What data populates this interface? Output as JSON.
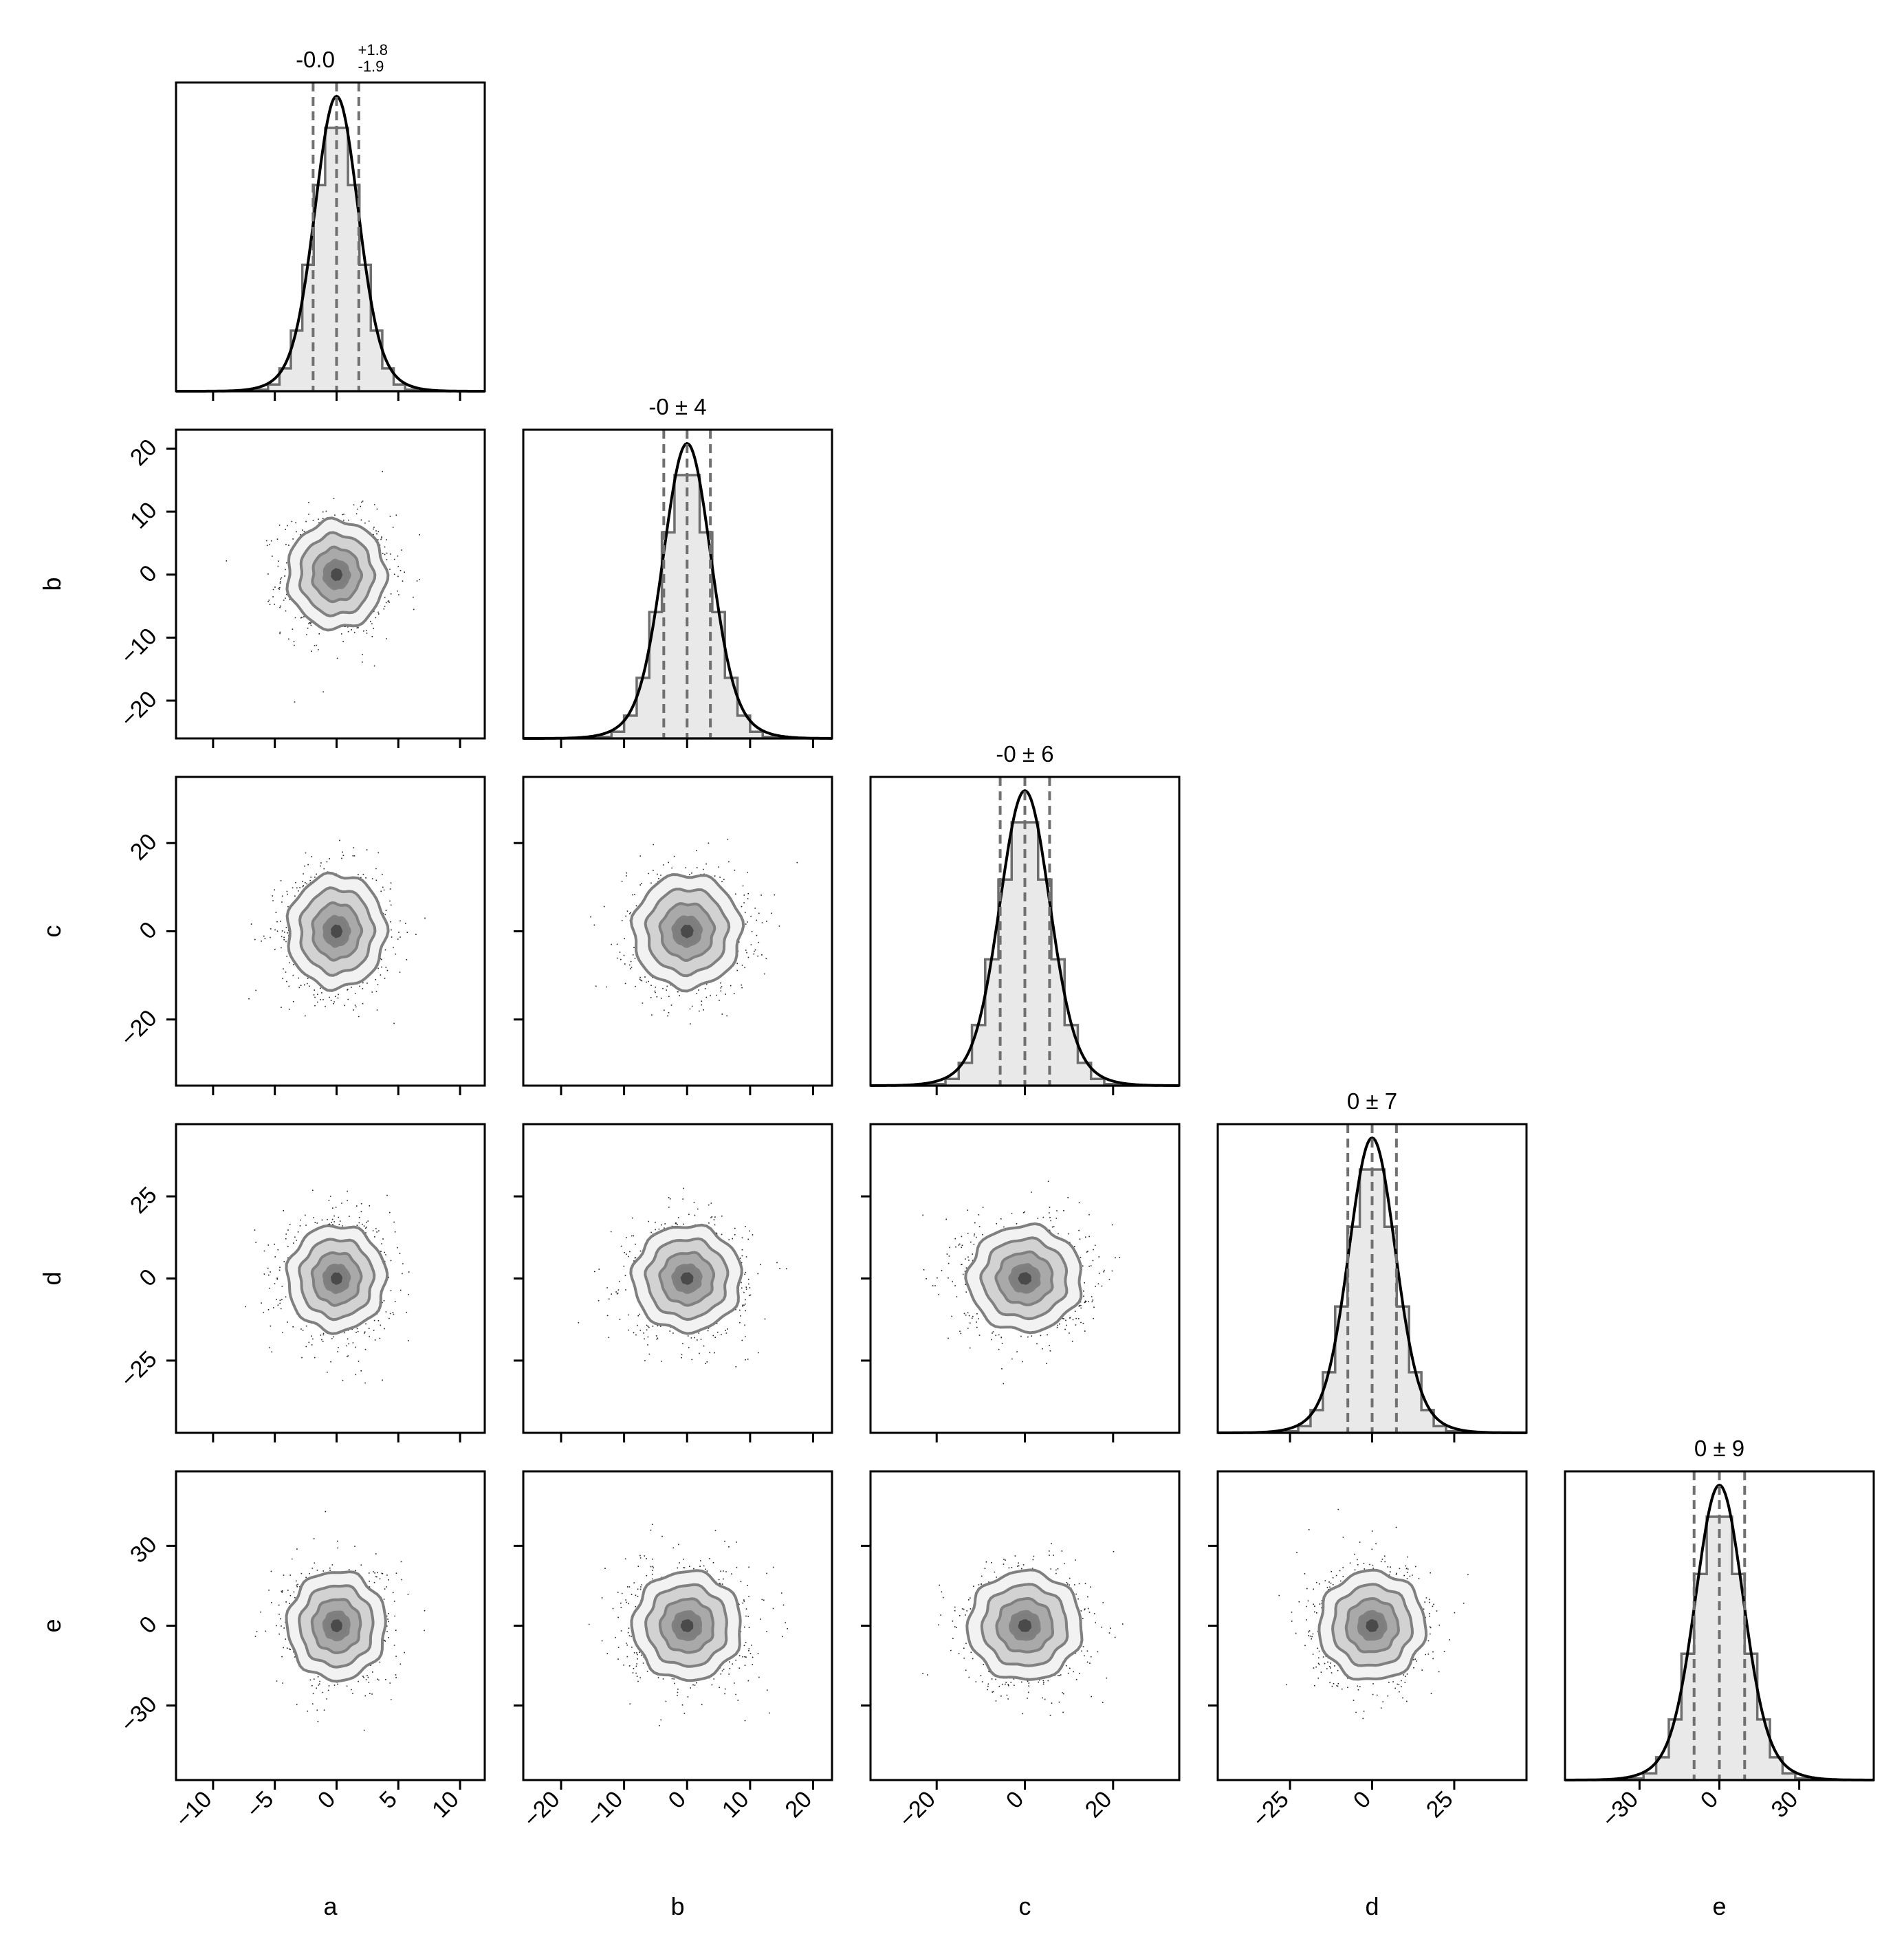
{
  "variables": [
    "a",
    "b",
    "c",
    "d",
    "e"
  ],
  "chart_data": {
    "type": "corner",
    "title": "",
    "params": [
      {
        "name": "a",
        "xlabel": "a",
        "ylabel": "",
        "range": [
          -13,
          12
        ],
        "ticks": [
          -10,
          -5,
          0,
          5,
          10
        ],
        "tick_labels": [
          "−10",
          "−5",
          "0",
          "5",
          "10"
        ],
        "sigma": 1.85,
        "quantiles": [
          -1.9,
          0.0,
          1.8
        ],
        "summary": {
          "base": "-0.0",
          "upper": "+1.8",
          "lower": "-1.9"
        }
      },
      {
        "name": "b",
        "xlabel": "b",
        "ylabel": "b",
        "range": [
          -26,
          23
        ],
        "ticks": [
          -20,
          -10,
          0,
          10,
          20
        ],
        "tick_labels": [
          "−20",
          "−10",
          "0",
          "10",
          "20"
        ],
        "sigma": 4,
        "quantiles": [
          -3.7,
          0.0,
          3.7
        ],
        "summary": {
          "base": "-0 ± 4"
        }
      },
      {
        "name": "c",
        "xlabel": "c",
        "ylabel": "c",
        "range": [
          -35,
          35
        ],
        "ticks": [
          -20,
          0,
          20
        ],
        "tick_labels": [
          "−20",
          "0",
          "20"
        ],
        "sigma": 6,
        "quantiles": [
          -5.6,
          0.0,
          5.6
        ],
        "summary": {
          "base": "-0 ± 6"
        }
      },
      {
        "name": "d",
        "xlabel": "d",
        "ylabel": "d",
        "range": [
          -47,
          47
        ],
        "ticks": [
          -25,
          0,
          25
        ],
        "tick_labels": [
          "−25",
          "0",
          "25"
        ],
        "sigma": 7.5,
        "quantiles": [
          -7.4,
          0.0,
          7.4
        ],
        "summary": {
          "base": "0 ± 7"
        }
      },
      {
        "name": "e",
        "xlabel": "e",
        "ylabel": "e",
        "range": [
          -58,
          58
        ],
        "ticks": [
          -30,
          0,
          30
        ],
        "tick_labels": [
          "−30",
          "0",
          "30"
        ],
        "sigma": 9.5,
        "quantiles": [
          -9.5,
          0.0,
          9.5
        ],
        "summary": {
          "base": "0 ± 9"
        }
      }
    ],
    "histogram": {
      "bins": 20,
      "fill": "#e9e9e9",
      "edge": "#6e6e6e"
    },
    "density_curve": {
      "color": "#000000"
    },
    "quantile_lines": {
      "color": "#707070",
      "style": "dashed"
    },
    "contour_levels": [
      0.5,
      1.0,
      1.5,
      2.0
    ],
    "contour_fills": [
      "#f2f2f2",
      "#d2d2d2",
      "#a9a9a9",
      "#7e7e7e",
      "#4a4a4a"
    ],
    "contour_line": "#808080",
    "scatter_color": "#222222",
    "grid": false,
    "legend": "none"
  }
}
